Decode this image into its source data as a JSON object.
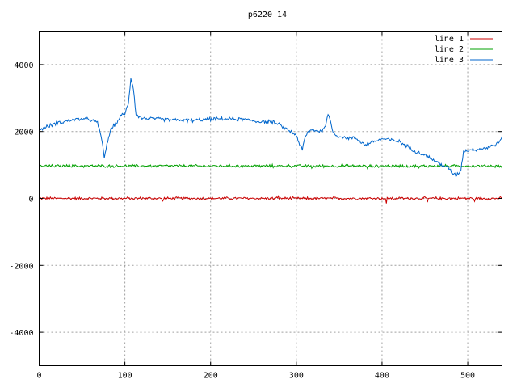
{
  "chart_data": {
    "type": "line",
    "title": "p6220_14",
    "xlabel": "",
    "ylabel": "",
    "xlim": [
      0,
      540
    ],
    "ylim": [
      -5000,
      5000
    ],
    "xticks": [
      0,
      100,
      200,
      300,
      400,
      500
    ],
    "yticks": [
      -4000,
      -2000,
      0,
      2000,
      4000
    ],
    "grid": true,
    "legend_position": "top-right",
    "series": [
      {
        "name": "line 1",
        "color": "#cc0000",
        "base": 0,
        "noise": 35,
        "points": [
          [
            0,
            0
          ],
          [
            540,
            0
          ]
        ],
        "spikes": [
          [
            405,
            -150
          ],
          [
            453,
            -110
          ],
          [
            279,
            70
          ],
          [
            144,
            -80
          ],
          [
            508,
            -90
          ]
        ]
      },
      {
        "name": "line 2",
        "color": "#00a000",
        "base": 970,
        "noise": 35,
        "points": [
          [
            0,
            970
          ],
          [
            540,
            970
          ]
        ],
        "spikes": [
          [
            35,
            1030
          ],
          [
            273,
            920
          ],
          [
            318,
            900
          ],
          [
            383,
            890
          ],
          [
            443,
            910
          ],
          [
            540,
            900
          ]
        ]
      },
      {
        "name": "line 3",
        "color": "#0066cc",
        "noise": 45,
        "points": [
          [
            0,
            2050
          ],
          [
            10,
            2150
          ],
          [
            20,
            2250
          ],
          [
            30,
            2300
          ],
          [
            40,
            2350
          ],
          [
            50,
            2380
          ],
          [
            60,
            2350
          ],
          [
            68,
            2250
          ],
          [
            72,
            1900
          ],
          [
            76,
            1250
          ],
          [
            80,
            1700
          ],
          [
            84,
            2100
          ],
          [
            90,
            2250
          ],
          [
            95,
            2450
          ],
          [
            100,
            2550
          ],
          [
            104,
            2800
          ],
          [
            107,
            3600
          ],
          [
            110,
            3300
          ],
          [
            113,
            2500
          ],
          [
            120,
            2400
          ],
          [
            140,
            2370
          ],
          [
            160,
            2340
          ],
          [
            180,
            2330
          ],
          [
            200,
            2370
          ],
          [
            220,
            2380
          ],
          [
            240,
            2360
          ],
          [
            255,
            2300
          ],
          [
            270,
            2300
          ],
          [
            280,
            2200
          ],
          [
            290,
            2050
          ],
          [
            300,
            1900
          ],
          [
            304,
            1600
          ],
          [
            307,
            1450
          ],
          [
            310,
            1800
          ],
          [
            314,
            2000
          ],
          [
            320,
            2050
          ],
          [
            330,
            2000
          ],
          [
            334,
            2200
          ],
          [
            337,
            2500
          ],
          [
            340,
            2300
          ],
          [
            343,
            1950
          ],
          [
            350,
            1850
          ],
          [
            360,
            1800
          ],
          [
            370,
            1800
          ],
          [
            380,
            1600
          ],
          [
            390,
            1700
          ],
          [
            400,
            1780
          ],
          [
            410,
            1750
          ],
          [
            420,
            1700
          ],
          [
            430,
            1550
          ],
          [
            440,
            1400
          ],
          [
            450,
            1300
          ],
          [
            460,
            1150
          ],
          [
            470,
            1000
          ],
          [
            478,
            900
          ],
          [
            482,
            750
          ],
          [
            487,
            700
          ],
          [
            492,
            850
          ],
          [
            495,
            1400
          ],
          [
            500,
            1450
          ],
          [
            510,
            1470
          ],
          [
            520,
            1500
          ],
          [
            530,
            1580
          ],
          [
            535,
            1650
          ],
          [
            540,
            1800
          ]
        ],
        "spikes": []
      }
    ]
  }
}
